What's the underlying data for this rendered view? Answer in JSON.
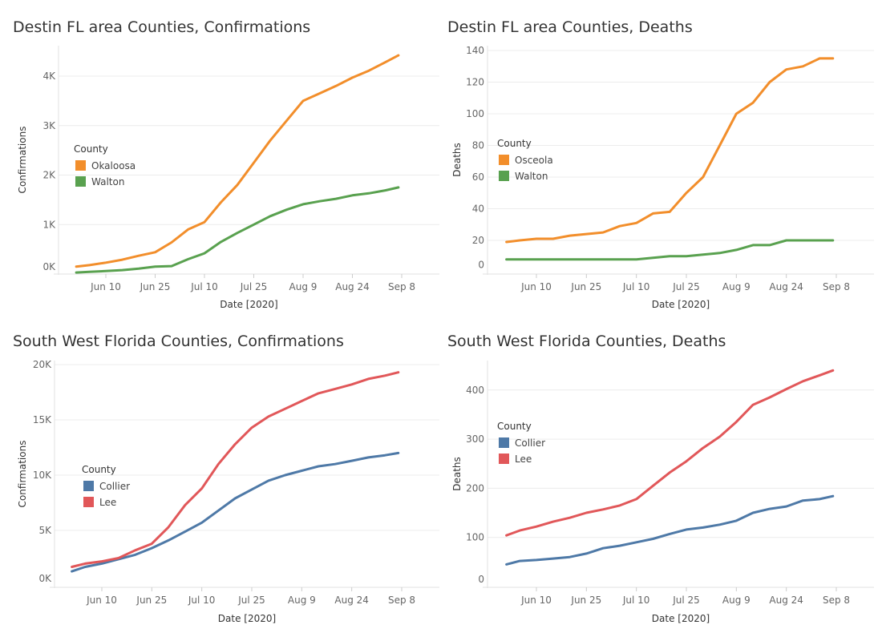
{
  "chart_data": [
    {
      "type": "line",
      "title": "Destin FL area Counties, Confirmations",
      "xlabel": "Date [2020]",
      "ylabel": "Confirmations",
      "legend_title": "County",
      "legend_placement": "left",
      "grid": true,
      "x_ticks": [
        "Jun 10",
        "Jun 25",
        "Jul 10",
        "Jul 25",
        "Aug 9",
        "Aug 24",
        "Sep 8"
      ],
      "y_ticks": [
        {
          "v": 0,
          "label": "0K"
        },
        {
          "v": 1000,
          "label": "1K"
        },
        {
          "v": 2000,
          "label": "2K"
        },
        {
          "v": 3000,
          "label": "3K"
        },
        {
          "v": 4000,
          "label": "4K"
        }
      ],
      "x": [
        "Jun 1",
        "Jun 5",
        "Jun 10",
        "Jun 15",
        "Jun 20",
        "Jun 25",
        "Jun 30",
        "Jul 5",
        "Jul 10",
        "Jul 15",
        "Jul 20",
        "Jul 25",
        "Jul 30",
        "Aug 4",
        "Aug 9",
        "Aug 14",
        "Aug 19",
        "Aug 24",
        "Aug 29",
        "Sep 3",
        "Sep 7"
      ],
      "series": [
        {
          "name": "Okaloosa",
          "color": "#f28e2b",
          "values": [
            150,
            180,
            230,
            290,
            370,
            440,
            640,
            900,
            1050,
            1450,
            1800,
            2250,
            2700,
            3100,
            3500,
            3650,
            3800,
            3970,
            4110,
            4280,
            4420
          ]
        },
        {
          "name": "Walton",
          "color": "#59a14f",
          "values": [
            30,
            45,
            60,
            80,
            110,
            150,
            160,
            300,
            420,
            650,
            830,
            1000,
            1170,
            1300,
            1410,
            1470,
            1520,
            1590,
            1630,
            1690,
            1750
          ]
        }
      ]
    },
    {
      "type": "line",
      "title": "Destin FL area Counties, Deaths",
      "xlabel": "Date [2020]",
      "ylabel": "Deaths",
      "legend_title": "County",
      "legend_placement": "left",
      "grid": true,
      "x_ticks": [
        "Jun 10",
        "Jun 25",
        "Jul 10",
        "Jul 25",
        "Aug 9",
        "Aug 24",
        "Sep 8"
      ],
      "y_ticks": [
        {
          "v": 0,
          "label": "0"
        },
        {
          "v": 20,
          "label": "20"
        },
        {
          "v": 40,
          "label": "40"
        },
        {
          "v": 60,
          "label": "60"
        },
        {
          "v": 80,
          "label": "80"
        },
        {
          "v": 100,
          "label": "100"
        },
        {
          "v": 120,
          "label": "120"
        },
        {
          "v": 140,
          "label": "140"
        }
      ],
      "x": [
        "Jun 1",
        "Jun 5",
        "Jun 10",
        "Jun 15",
        "Jun 20",
        "Jun 25",
        "Jun 30",
        "Jul 5",
        "Jul 10",
        "Jul 15",
        "Jul 20",
        "Jul 25",
        "Jul 30",
        "Aug 4",
        "Aug 9",
        "Aug 14",
        "Aug 19",
        "Aug 24",
        "Aug 29",
        "Sep 3",
        "Sep 7"
      ],
      "series": [
        {
          "name": "Osceola",
          "color": "#f28e2b",
          "values": [
            19,
            20,
            21,
            21,
            23,
            24,
            25,
            29,
            31,
            37,
            38,
            50,
            60,
            80,
            100,
            107,
            120,
            128,
            130,
            135,
            135
          ]
        },
        {
          "name": "Walton",
          "color": "#59a14f",
          "values": [
            8,
            8,
            8,
            8,
            8,
            8,
            8,
            8,
            8,
            9,
            10,
            10,
            11,
            12,
            14,
            17,
            17,
            20,
            20,
            20,
            20
          ]
        }
      ]
    },
    {
      "type": "line",
      "title": "South West Florida Counties, Confirmations",
      "xlabel": "Date [2020]",
      "ylabel": "Confirmations",
      "legend_title": "County",
      "legend_placement": "left",
      "grid": true,
      "x_ticks": [
        "Jun 10",
        "Jun 25",
        "Jul 10",
        "Jul 25",
        "Aug 9",
        "Aug 24",
        "Sep 8"
      ],
      "y_ticks": [
        {
          "v": 0,
          "label": "0K"
        },
        {
          "v": 5000,
          "label": "5K"
        },
        {
          "v": 10000,
          "label": "10K"
        },
        {
          "v": 15000,
          "label": "15K"
        },
        {
          "v": 20000,
          "label": "20K"
        }
      ],
      "x": [
        "Jun 1",
        "Jun 5",
        "Jun 10",
        "Jun 15",
        "Jun 20",
        "Jun 25",
        "Jun 30",
        "Jul 5",
        "Jul 10",
        "Jul 15",
        "Jul 20",
        "Jul 25",
        "Jul 30",
        "Aug 4",
        "Aug 9",
        "Aug 14",
        "Aug 19",
        "Aug 24",
        "Aug 29",
        "Sep 3",
        "Sep 7"
      ],
      "series": [
        {
          "name": "Collier",
          "color": "#4e79a7",
          "values": [
            1300,
            1700,
            2000,
            2400,
            2800,
            3400,
            4100,
            4900,
            5700,
            6800,
            7900,
            8700,
            9500,
            10000,
            10400,
            10800,
            11000,
            11300,
            11600,
            11800,
            12000
          ]
        },
        {
          "name": "Lee",
          "color": "#e15759",
          "values": [
            1700,
            2000,
            2200,
            2500,
            3200,
            3800,
            5300,
            7300,
            8800,
            11000,
            12800,
            14300,
            15300,
            16000,
            16700,
            17400,
            17800,
            18200,
            18700,
            19000,
            19300
          ]
        }
      ]
    },
    {
      "type": "line",
      "title": "South West Florida Counties, Deaths",
      "xlabel": "Date [2020]",
      "ylabel": "Deaths",
      "legend_title": "County",
      "legend_placement": "left",
      "grid": true,
      "x_ticks": [
        "Jun 10",
        "Jun 25",
        "Jul 10",
        "Jul 25",
        "Aug 9",
        "Aug 24",
        "Sep 8"
      ],
      "y_ticks": [
        {
          "v": 0,
          "label": "0"
        },
        {
          "v": 100,
          "label": "100"
        },
        {
          "v": 200,
          "label": "200"
        },
        {
          "v": 300,
          "label": "300"
        },
        {
          "v": 400,
          "label": "400"
        }
      ],
      "x": [
        "Jun 1",
        "Jun 5",
        "Jun 10",
        "Jun 15",
        "Jun 20",
        "Jun 25",
        "Jun 30",
        "Jul 5",
        "Jul 10",
        "Jul 15",
        "Jul 20",
        "Jul 25",
        "Jul 30",
        "Aug 4",
        "Aug 9",
        "Aug 14",
        "Aug 19",
        "Aug 24",
        "Aug 29",
        "Sep 3",
        "Sep 7"
      ],
      "series": [
        {
          "name": "Collier",
          "color": "#4e79a7",
          "values": [
            45,
            52,
            54,
            57,
            60,
            67,
            78,
            83,
            90,
            97,
            107,
            116,
            120,
            126,
            134,
            150,
            158,
            163,
            175,
            178,
            184
          ]
        },
        {
          "name": "Lee",
          "color": "#e15759",
          "values": [
            104,
            114,
            122,
            132,
            140,
            150,
            157,
            165,
            178,
            205,
            232,
            255,
            282,
            305,
            335,
            370,
            385,
            402,
            418,
            430,
            440
          ]
        }
      ]
    }
  ]
}
